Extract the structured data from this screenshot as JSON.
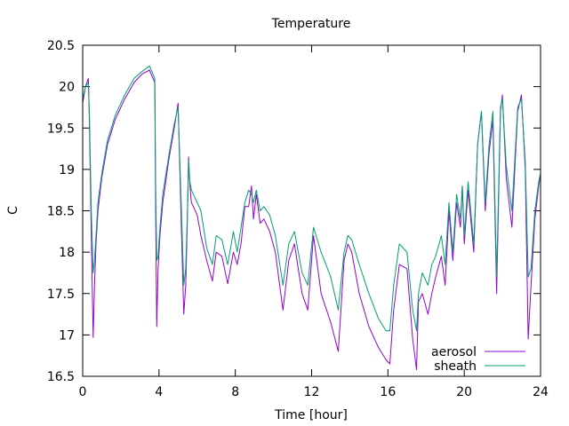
{
  "chart_data": {
    "type": "line",
    "title": "Temperature",
    "xlabel": "Time [hour]",
    "ylabel": "C",
    "xlim": [
      0,
      24
    ],
    "ylim": [
      16.5,
      20.5
    ],
    "xticks": [
      0,
      4,
      8,
      12,
      16,
      20,
      24
    ],
    "yticks": [
      16.5,
      17,
      17.5,
      18,
      18.5,
      19,
      19.5,
      20,
      20.5
    ],
    "grid": false,
    "legend_position": "bottom-right",
    "series": [
      {
        "name": "aerosol",
        "color": "#9400d3",
        "x": [
          0,
          0.15,
          0.3,
          0.35,
          0.45,
          0.55,
          0.62,
          0.7,
          0.8,
          1.0,
          1.3,
          1.7,
          2.2,
          2.7,
          3.1,
          3.5,
          3.78,
          3.82,
          3.88,
          3.95,
          4.05,
          4.2,
          4.5,
          4.8,
          5.0,
          5.15,
          5.3,
          5.4,
          5.48,
          5.55,
          5.62,
          5.7,
          5.8,
          6.0,
          6.2,
          6.5,
          6.8,
          7.0,
          7.3,
          7.6,
          7.9,
          8.1,
          8.3,
          8.5,
          8.7,
          8.85,
          8.95,
          9.1,
          9.3,
          9.5,
          9.8,
          10.1,
          10.5,
          10.8,
          11.1,
          11.5,
          11.8,
          12.1,
          12.5,
          13.0,
          13.4,
          13.7,
          13.9,
          14.1,
          14.5,
          15.0,
          15.5,
          15.9,
          16.1,
          16.3,
          16.6,
          17.0,
          17.3,
          17.5,
          17.6,
          17.8,
          18.1,
          18.3,
          18.5,
          18.8,
          19.0,
          19.2,
          19.4,
          19.6,
          19.8,
          19.9,
          20.0,
          20.2,
          20.5,
          20.7,
          20.9,
          21.1,
          21.3,
          21.5,
          21.7,
          21.9,
          22.0,
          22.2,
          22.5,
          22.8,
          23.0,
          23.2,
          23.35,
          23.5,
          23.7,
          23.9,
          24.0
        ],
        "y": [
          19.8,
          20.0,
          20.1,
          19.6,
          18.2,
          16.97,
          17.6,
          18.1,
          18.5,
          18.9,
          19.3,
          19.6,
          19.85,
          20.05,
          20.15,
          20.2,
          20.05,
          18.6,
          17.1,
          17.8,
          18.2,
          18.6,
          19.1,
          19.5,
          19.8,
          18.5,
          17.25,
          17.6,
          18.3,
          19.15,
          18.8,
          18.6,
          18.55,
          18.45,
          18.2,
          17.9,
          17.65,
          18.0,
          17.95,
          17.62,
          18.0,
          17.85,
          18.1,
          18.55,
          18.55,
          18.8,
          18.4,
          18.7,
          18.35,
          18.4,
          18.25,
          18.0,
          17.3,
          17.9,
          18.1,
          17.5,
          17.3,
          18.2,
          17.5,
          17.15,
          16.8,
          17.9,
          18.1,
          18.0,
          17.5,
          17.1,
          16.85,
          16.7,
          16.65,
          17.3,
          17.85,
          17.8,
          16.95,
          16.58,
          17.4,
          17.5,
          17.25,
          17.5,
          17.7,
          17.95,
          17.6,
          18.5,
          17.9,
          18.6,
          18.3,
          18.8,
          18.1,
          18.75,
          18.0,
          19.3,
          19.7,
          18.5,
          19.2,
          19.6,
          17.5,
          19.7,
          19.9,
          18.9,
          18.3,
          19.7,
          19.9,
          19.0,
          16.95,
          17.6,
          18.4,
          18.8,
          18.95
        ]
      },
      {
        "name": "sheath",
        "color": "#009e73",
        "x": [
          0,
          0.15,
          0.3,
          0.35,
          0.45,
          0.55,
          0.62,
          0.7,
          0.8,
          1.0,
          1.3,
          1.7,
          2.2,
          2.7,
          3.1,
          3.5,
          3.78,
          3.82,
          3.88,
          3.95,
          4.05,
          4.2,
          4.5,
          4.8,
          5.0,
          5.15,
          5.3,
          5.4,
          5.48,
          5.55,
          5.62,
          5.7,
          5.8,
          6.0,
          6.2,
          6.5,
          6.8,
          7.0,
          7.3,
          7.6,
          7.9,
          8.1,
          8.3,
          8.5,
          8.7,
          8.85,
          8.95,
          9.1,
          9.3,
          9.5,
          9.8,
          10.1,
          10.5,
          10.8,
          11.1,
          11.5,
          11.8,
          12.1,
          12.5,
          13.0,
          13.4,
          13.7,
          13.9,
          14.1,
          14.5,
          15.0,
          15.5,
          15.9,
          16.1,
          16.3,
          16.6,
          17.0,
          17.3,
          17.5,
          17.6,
          17.8,
          18.1,
          18.3,
          18.5,
          18.8,
          19.0,
          19.2,
          19.4,
          19.6,
          19.8,
          19.9,
          20.0,
          20.2,
          20.5,
          20.7,
          20.9,
          21.1,
          21.3,
          21.5,
          21.7,
          21.9,
          22.0,
          22.2,
          22.5,
          22.8,
          23.0,
          23.2,
          23.35,
          23.5,
          23.7,
          23.9,
          24.0
        ],
        "y": [
          19.85,
          20.0,
          20.05,
          19.7,
          18.5,
          17.75,
          17.9,
          18.2,
          18.6,
          18.95,
          19.35,
          19.65,
          19.9,
          20.1,
          20.18,
          20.25,
          20.1,
          18.9,
          17.9,
          17.95,
          18.3,
          18.7,
          19.15,
          19.55,
          19.75,
          18.7,
          17.6,
          17.8,
          18.4,
          19.1,
          18.85,
          18.75,
          18.7,
          18.6,
          18.5,
          18.05,
          17.85,
          18.2,
          18.15,
          17.85,
          18.25,
          18.0,
          18.3,
          18.6,
          18.75,
          18.7,
          18.6,
          18.75,
          18.5,
          18.55,
          18.45,
          18.2,
          17.6,
          18.1,
          18.25,
          17.75,
          17.6,
          18.3,
          18.0,
          17.7,
          17.3,
          18.0,
          18.2,
          18.15,
          17.85,
          17.5,
          17.2,
          17.05,
          17.05,
          17.6,
          18.1,
          18.0,
          17.3,
          17.05,
          17.5,
          17.75,
          17.6,
          17.85,
          17.95,
          18.2,
          17.85,
          18.6,
          18.0,
          18.7,
          18.4,
          18.8,
          18.2,
          18.85,
          18.1,
          19.3,
          19.7,
          18.6,
          19.3,
          19.7,
          17.7,
          19.75,
          19.85,
          19.05,
          18.5,
          19.75,
          19.85,
          19.1,
          17.7,
          17.8,
          18.5,
          18.85,
          18.95
        ]
      }
    ]
  }
}
